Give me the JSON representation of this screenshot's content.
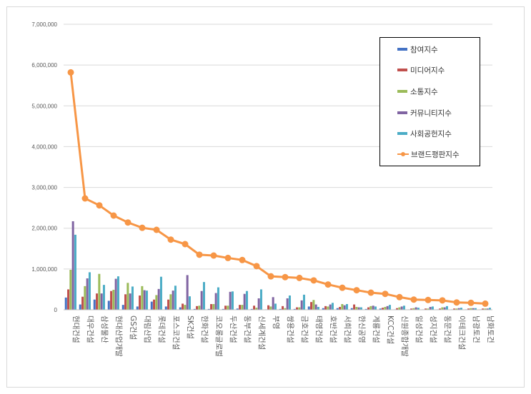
{
  "chart_data": {
    "type": "bar",
    "title": "",
    "xlabel": "",
    "ylabel": "",
    "ylim": [
      0,
      7000000
    ],
    "yticks": [
      0,
      1000000,
      2000000,
      3000000,
      4000000,
      5000000,
      6000000,
      7000000
    ],
    "ytick_labels": [
      "0",
      "1,000,000",
      "2,000,000",
      "3,000,000",
      "4,000,000",
      "5,000,000",
      "6,000,000",
      "7,000,000"
    ],
    "grid": true,
    "legend_position": "top-right",
    "categories": [
      "현대건설",
      "대우건설",
      "삼성물산",
      "현대산업개발",
      "GS건설",
      "대림산업",
      "롯데건설",
      "포스코건설",
      "SK건설",
      "한화건설",
      "코오롱글로벌",
      "두산건설",
      "동부건설",
      "신세계건설",
      "부영",
      "쌍용건설",
      "금호건설",
      "태영건설",
      "호반건설",
      "서희건설",
      "한신공영",
      "계룡건설",
      "KCC건설",
      "신원종합개발",
      "일성건설",
      "성지건설",
      "동문건설",
      "이테크건설",
      "남광토건",
      "남화토건"
    ],
    "series": [
      {
        "name": "참여지수",
        "kind": "bar",
        "color": "#4472c4",
        "values": [
          300000,
          130000,
          250000,
          220000,
          120000,
          80000,
          200000,
          80000,
          60000,
          20000,
          20000,
          20000,
          30000,
          20000,
          10000,
          20000,
          20000,
          80000,
          40000,
          40000,
          40000,
          20000,
          30000,
          10000,
          10000,
          10000,
          10000,
          10000,
          10000,
          10000
        ]
      },
      {
        "name": "미디어지수",
        "kind": "bar",
        "color": "#c0504d",
        "values": [
          500000,
          320000,
          400000,
          460000,
          380000,
          350000,
          250000,
          250000,
          150000,
          90000,
          140000,
          100000,
          120000,
          100000,
          110000,
          90000,
          60000,
          190000,
          90000,
          70000,
          130000,
          60000,
          50000,
          40000,
          30000,
          30000,
          30000,
          30000,
          30000,
          30000
        ]
      },
      {
        "name": "소통지수",
        "kind": "bar",
        "color": "#9bbb59",
        "values": [
          980000,
          580000,
          880000,
          490000,
          660000,
          580000,
          360000,
          380000,
          120000,
          100000,
          140000,
          100000,
          120000,
          50000,
          80000,
          40000,
          60000,
          240000,
          80000,
          140000,
          70000,
          90000,
          70000,
          60000,
          40000,
          30000,
          60000,
          30000,
          40000,
          30000
        ]
      },
      {
        "name": "커뮤니티지수",
        "kind": "bar",
        "color": "#8064a2",
        "values": [
          2170000,
          770000,
          400000,
          760000,
          400000,
          480000,
          510000,
          470000,
          850000,
          460000,
          410000,
          440000,
          390000,
          280000,
          310000,
          280000,
          230000,
          130000,
          130000,
          110000,
          60000,
          100000,
          90000,
          80000,
          60000,
          70000,
          60000,
          40000,
          40000,
          30000
        ]
      },
      {
        "name": "사회공헌지수",
        "kind": "bar",
        "color": "#4bacc6",
        "values": [
          1840000,
          920000,
          610000,
          820000,
          570000,
          470000,
          810000,
          590000,
          330000,
          680000,
          550000,
          450000,
          460000,
          500000,
          150000,
          350000,
          370000,
          70000,
          170000,
          140000,
          60000,
          80000,
          120000,
          100000,
          50000,
          80000,
          90000,
          50000,
          40000,
          50000
        ]
      },
      {
        "name": "브랜드평판지수",
        "kind": "line",
        "color": "#f79646",
        "values": [
          5820000,
          2730000,
          2560000,
          2310000,
          2140000,
          2010000,
          1960000,
          1720000,
          1610000,
          1350000,
          1330000,
          1270000,
          1220000,
          1070000,
          820000,
          800000,
          780000,
          720000,
          620000,
          540000,
          480000,
          420000,
          390000,
          310000,
          250000,
          240000,
          230000,
          180000,
          170000,
          150000
        ]
      }
    ]
  }
}
